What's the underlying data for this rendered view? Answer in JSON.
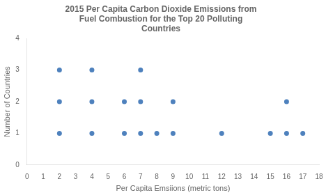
{
  "chart_data": {
    "type": "scatter",
    "title": "2015 Per Capita Carbon Dioxide Emissions from\nFuel Combustion for the Top 20 Polluting\nCountries",
    "x_label": "Per Capita Emsiions (metric tons)",
    "y_label": "Number of Countries",
    "series": [
      {
        "color": "#4E81BD",
        "x": [
          2,
          2,
          2,
          4,
          4,
          4,
          6,
          6,
          7,
          7,
          7,
          8,
          9,
          9,
          12,
          15,
          16,
          16,
          17
        ],
        "values": [
          1,
          2,
          3,
          1,
          2,
          3,
          1,
          2,
          1,
          2,
          3,
          1,
          1,
          2,
          1,
          1,
          1,
          2,
          1
        ]
      }
    ],
    "xlim": [
      0,
      18
    ],
    "ylim": [
      0,
      4
    ],
    "xticks": [
      0,
      1,
      2,
      3,
      4,
      5,
      6,
      7,
      8,
      9,
      10,
      11,
      12,
      13,
      14,
      15,
      16,
      17,
      18
    ],
    "yticks": [
      0,
      1,
      2,
      3,
      4
    ],
    "grid": false
  }
}
